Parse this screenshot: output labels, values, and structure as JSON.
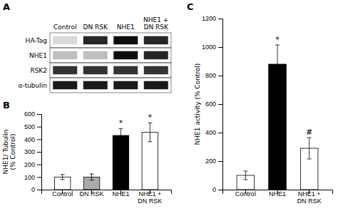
{
  "chart_data": [
    {
      "type": "blot",
      "title": "A",
      "categories": [
        "Control",
        "DN RSK",
        "NHE1",
        "NHE1 +\nDN RSK"
      ],
      "series": [
        {
          "name": "HA-Tag",
          "colors": [
            "#d9d9d9",
            "#262626",
            "#0d0d0d",
            "#262626"
          ]
        },
        {
          "name": "NHE1",
          "colors": [
            "#bfbfbf",
            "#bfbfbf",
            "#0d0d0d",
            "#262626"
          ]
        },
        {
          "name": "RSK2",
          "colors": [
            "#333333",
            "#333333",
            "#333333",
            "#333333"
          ]
        },
        {
          "name": "α-tubulin",
          "colors": [
            "#1a1a1a",
            "#1a1a1a",
            "#1a1a1a",
            "#1a1a1a"
          ]
        }
      ]
    },
    {
      "type": "bar",
      "title": "B",
      "categories": [
        "Control",
        "DN RSK",
        "NHE1",
        "NHE1 +\nDN RSK"
      ],
      "values": [
        100,
        100,
        430,
        455
      ],
      "errors": [
        20,
        25,
        55,
        75
      ],
      "colors": [
        "white",
        "#aaaaaa",
        "black",
        "white"
      ],
      "ylabel": "NHE1/ Tubulin\n(% Control)",
      "ylim": [
        0,
        600
      ],
      "yticks": [
        0,
        100,
        200,
        300,
        400,
        500,
        600
      ],
      "annotations": [
        {
          "x": "NHE1",
          "text": "*"
        },
        {
          "x": "NHE1 +\nDN RSK",
          "text": "*"
        }
      ]
    },
    {
      "type": "bar",
      "title": "C",
      "categories": [
        "Control",
        "NHE1",
        "NHE1 +\nDN RSK"
      ],
      "values": [
        100,
        880,
        290
      ],
      "errors": [
        30,
        135,
        75
      ],
      "colors": [
        "white",
        "black",
        "white"
      ],
      "ylabel": "NHE1 activity (% Control)",
      "ylim": [
        0,
        1200
      ],
      "yticks": [
        0,
        200,
        400,
        600,
        800,
        1000,
        1200
      ],
      "annotations": [
        {
          "x": "NHE1",
          "text": "*"
        },
        {
          "x": "NHE1 +\nDN RSK",
          "text": "#"
        }
      ]
    }
  ]
}
